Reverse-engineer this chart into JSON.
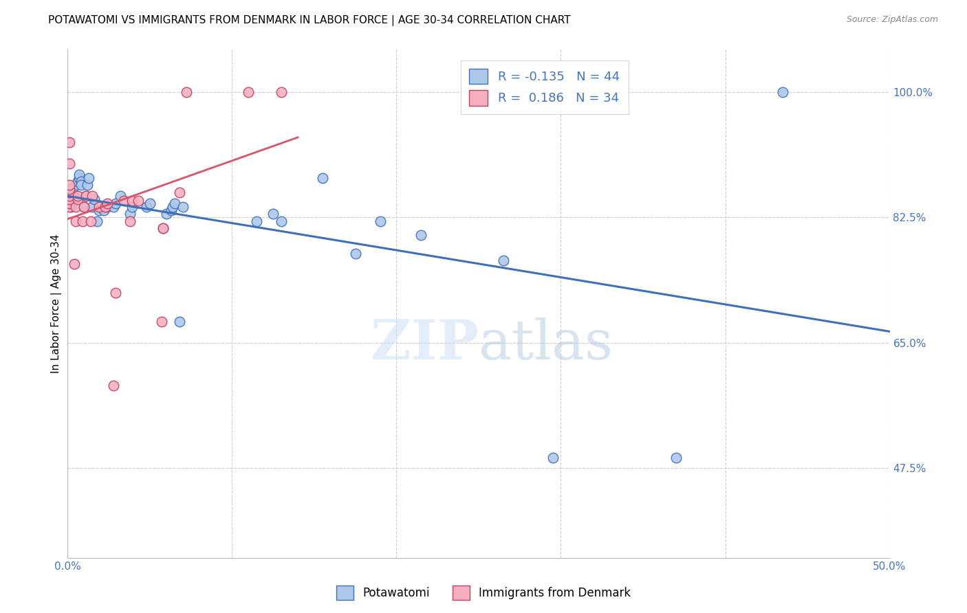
{
  "title": "POTAWATOMI VS IMMIGRANTS FROM DENMARK IN LABOR FORCE | AGE 30-34 CORRELATION CHART",
  "source": "Source: ZipAtlas.com",
  "ylabel": "In Labor Force | Age 30-34",
  "xlim": [
    0.0,
    0.5
  ],
  "ylim": [
    0.35,
    1.06
  ],
  "xtick_vals": [
    0.0,
    0.1,
    0.2,
    0.3,
    0.4,
    0.5
  ],
  "xtick_labels": [
    "0.0%",
    "",
    "",
    "",
    "",
    "50.0%"
  ],
  "ytick_vals": [
    0.475,
    0.65,
    0.825,
    1.0
  ],
  "ytick_labels": [
    "47.5%",
    "65.0%",
    "82.5%",
    "100.0%"
  ],
  "potawatomi_R": -0.135,
  "potawatomi_N": 44,
  "denmark_R": 0.186,
  "denmark_N": 34,
  "potawatomi_color": "#adc8e8",
  "denmark_color": "#f5afc0",
  "trend_blue": "#3d6fba",
  "trend_pink": "#d9546a",
  "watermark_zip": "ZIP",
  "watermark_atlas": "atlas",
  "potawatomi_x": [
    0.002,
    0.002,
    0.003,
    0.005,
    0.006,
    0.007,
    0.007,
    0.008,
    0.008,
    0.01,
    0.011,
    0.012,
    0.013,
    0.015,
    0.016,
    0.018,
    0.019,
    0.022,
    0.024,
    0.028,
    0.029,
    0.032,
    0.038,
    0.039,
    0.048,
    0.05,
    0.058,
    0.06,
    0.063,
    0.064,
    0.065,
    0.068,
    0.07,
    0.115,
    0.125,
    0.13,
    0.155,
    0.175,
    0.19,
    0.215,
    0.265,
    0.295,
    0.37,
    0.435
  ],
  "potawatomi_y": [
    0.84,
    0.85,
    0.86,
    0.87,
    0.875,
    0.88,
    0.885,
    0.875,
    0.87,
    0.84,
    0.855,
    0.87,
    0.88,
    0.84,
    0.85,
    0.82,
    0.835,
    0.835,
    0.84,
    0.84,
    0.845,
    0.855,
    0.83,
    0.84,
    0.84,
    0.845,
    0.81,
    0.83,
    0.835,
    0.84,
    0.845,
    0.68,
    0.84,
    0.82,
    0.83,
    0.82,
    0.88,
    0.775,
    0.82,
    0.8,
    0.765,
    0.49,
    0.49,
    1.0
  ],
  "denmark_x": [
    0.001,
    0.001,
    0.001,
    0.001,
    0.001,
    0.001,
    0.001,
    0.001,
    0.001,
    0.004,
    0.005,
    0.005,
    0.006,
    0.006,
    0.009,
    0.01,
    0.011,
    0.014,
    0.015,
    0.019,
    0.023,
    0.024,
    0.028,
    0.029,
    0.034,
    0.038,
    0.039,
    0.043,
    0.057,
    0.058,
    0.068,
    0.072,
    0.11,
    0.13
  ],
  "denmark_y": [
    0.84,
    0.845,
    0.85,
    0.855,
    0.86,
    0.865,
    0.87,
    0.9,
    0.93,
    0.76,
    0.82,
    0.84,
    0.85,
    0.855,
    0.82,
    0.84,
    0.855,
    0.82,
    0.855,
    0.84,
    0.84,
    0.845,
    0.59,
    0.72,
    0.848,
    0.82,
    0.848,
    0.848,
    0.68,
    0.81,
    0.86,
    1.0,
    1.0,
    1.0
  ]
}
